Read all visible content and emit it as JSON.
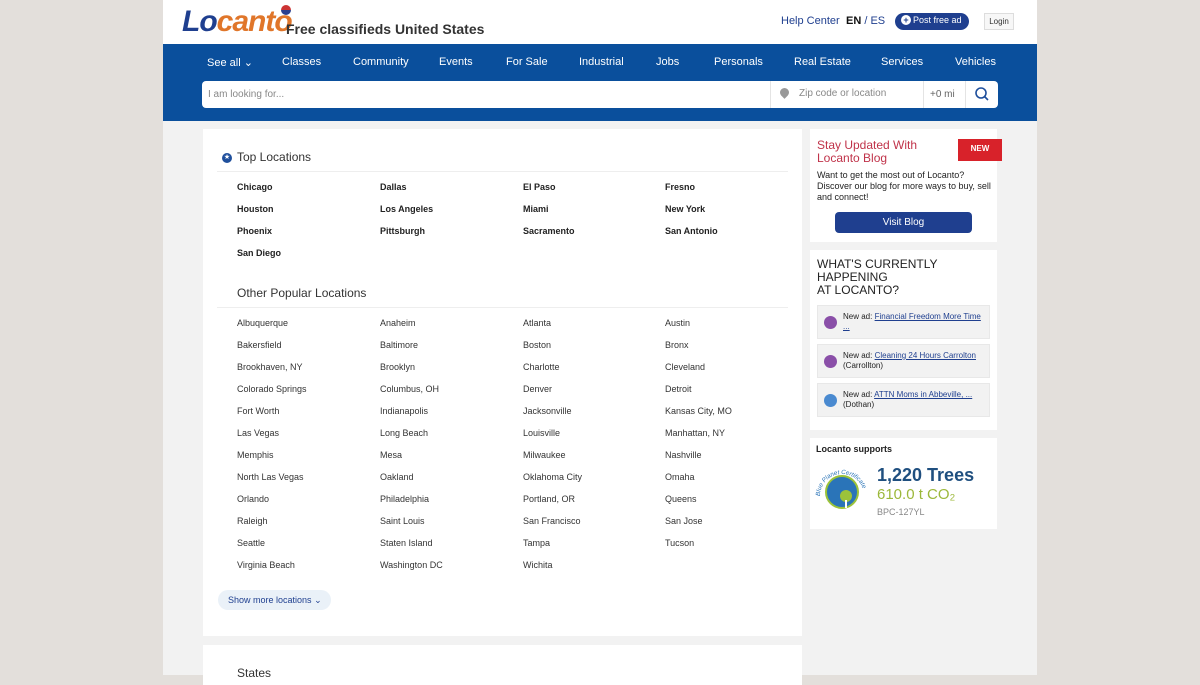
{
  "header": {
    "logo": "Locanto",
    "tagline": "Free classifieds United States",
    "help": "Help Center",
    "lang_en": "EN",
    "lang_sep": "/",
    "lang_es": "ES",
    "post": "Post free ad",
    "login": "Login"
  },
  "nav": [
    "See all ⌄",
    "Classes",
    "Community",
    "Events",
    "For Sale",
    "Industrial",
    "Jobs",
    "Personals",
    "Real Estate",
    "Services",
    "Vehicles"
  ],
  "search": {
    "placeholder": "I am looking for...",
    "location_placeholder": "Zip code or location",
    "radius": "+0 mi"
  },
  "top_locations": {
    "title": "Top Locations",
    "items": [
      "Chicago",
      "Dallas",
      "El Paso",
      "Fresno",
      "Houston",
      "Los Angeles",
      "Miami",
      "New York",
      "Phoenix",
      "Pittsburgh",
      "Sacramento",
      "San Antonio",
      "San Diego"
    ]
  },
  "other_locations": {
    "title": "Other Popular Locations",
    "items": [
      "Albuquerque",
      "Anaheim",
      "Atlanta",
      "Austin",
      "Bakersfield",
      "Baltimore",
      "Boston",
      "Bronx",
      "Brookhaven, NY",
      "Brooklyn",
      "Charlotte",
      "Cleveland",
      "Colorado Springs",
      "Columbus, OH",
      "Denver",
      "Detroit",
      "Fort Worth",
      "Indianapolis",
      "Jacksonville",
      "Kansas City, MO",
      "Las Vegas",
      "Long Beach",
      "Louisville",
      "Manhattan, NY",
      "Memphis",
      "Mesa",
      "Milwaukee",
      "Nashville",
      "North Las Vegas",
      "Oakland",
      "Oklahoma City",
      "Omaha",
      "Orlando",
      "Philadelphia",
      "Portland, OR",
      "Queens",
      "Raleigh",
      "Saint Louis",
      "San Francisco",
      "San Jose",
      "Seattle",
      "Staten Island",
      "Tampa",
      "Tucson",
      "Virginia Beach",
      "Washington DC",
      "Wichita"
    ]
  },
  "show_more": "Show more locations",
  "states_title": "States",
  "blog": {
    "title": "Stay Updated With Locanto Blog",
    "badge": "NEW",
    "text": "Want to get the most out of Locanto? Discover our blog for more ways to buy, sell and connect!",
    "button": "Visit Blog"
  },
  "happening": {
    "title_lines": [
      "WHAT'S CURRENTLY",
      "HAPPENING",
      "AT LOCANTO?"
    ],
    "ads": [
      {
        "prefix": "New ad:",
        "link": "Financial Freedom More Time ...",
        "city": "",
        "icon": "phone-icon"
      },
      {
        "prefix": "New ad:",
        "link": "Cleaning 24 Hours Carrolton",
        "city": "(Carrollton)",
        "icon": "phone-icon"
      },
      {
        "prefix": "New ad:",
        "link": "ATTN Moms in Abbeville, ...",
        "city": "(Dothan)",
        "icon": "briefcase-icon"
      }
    ]
  },
  "supports": {
    "title": "Locanto supports",
    "trees": "1,220 Trees",
    "co2": "610.0 t CO₂",
    "code": "BPC-127YL",
    "certificate": "Blue Planet Certificate"
  },
  "colors": {
    "nav": "#0a4f9c",
    "brand_blue": "#1f3f8f",
    "brand_orange": "#e0762a",
    "blog_title": "#c0334a",
    "badge": "#d8222a"
  }
}
